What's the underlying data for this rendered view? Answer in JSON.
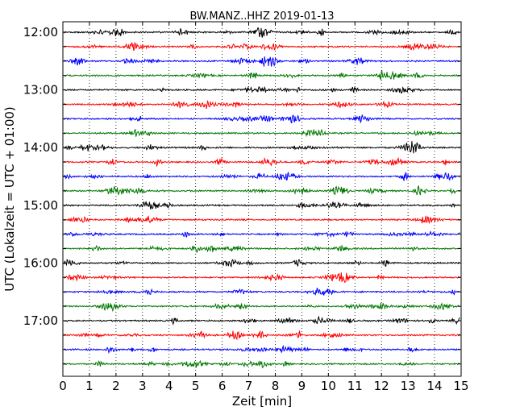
{
  "chart_data": {
    "type": "line",
    "title": "BW.MANZ..HHZ 2019-01-13",
    "xlabel": "Zeit  [min]",
    "ylabel": "UTC (Lokalzeit = UTC + 01:00)",
    "xlim": [
      0,
      15
    ],
    "x_ticks": [
      "0",
      "1",
      "2",
      "3",
      "4",
      "5",
      "6",
      "7",
      "8",
      "9",
      "10",
      "11",
      "12",
      "13",
      "14",
      "15"
    ],
    "y_tick_labels": [
      "12:00",
      "13:00",
      "14:00",
      "15:00",
      "16:00",
      "17:00"
    ],
    "grid": "vertical dotted lines at each minute",
    "trace_colors": [
      "#000000",
      "#ff0000",
      "#0000ff",
      "#007700"
    ],
    "row_start_times": [
      "12:00",
      "12:15",
      "12:30",
      "12:45",
      "13:00",
      "13:15",
      "13:30",
      "13:45",
      "14:00",
      "14:15",
      "14:30",
      "14:45",
      "15:00",
      "15:15",
      "15:30",
      "15:45",
      "16:00",
      "16:15",
      "16:30",
      "16:45",
      "17:00",
      "17:15",
      "17:30",
      "17:45"
    ],
    "row_duration_min": 15
  }
}
